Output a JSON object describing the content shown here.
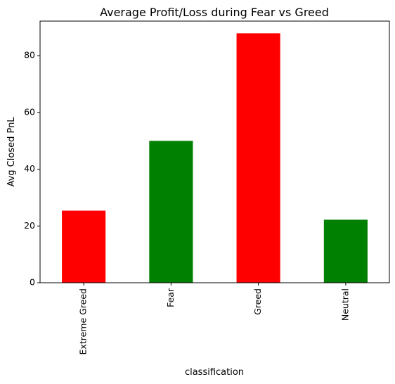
{
  "chart_data": {
    "type": "bar",
    "title": "Average Profit/Loss during Fear vs Greed",
    "xlabel": "classification",
    "ylabel": "Avg Closed PnL",
    "categories": [
      "Extreme Greed",
      "Fear",
      "Greed",
      "Neutral"
    ],
    "values": [
      25.4,
      50.0,
      87.9,
      22.2
    ],
    "bar_colors": [
      "#ff0000",
      "#008000",
      "#ff0000",
      "#008000"
    ],
    "ylim": [
      0,
      92.2
    ],
    "yticks": [
      0,
      20,
      40,
      60,
      80
    ],
    "grid": false,
    "legend": "none"
  }
}
